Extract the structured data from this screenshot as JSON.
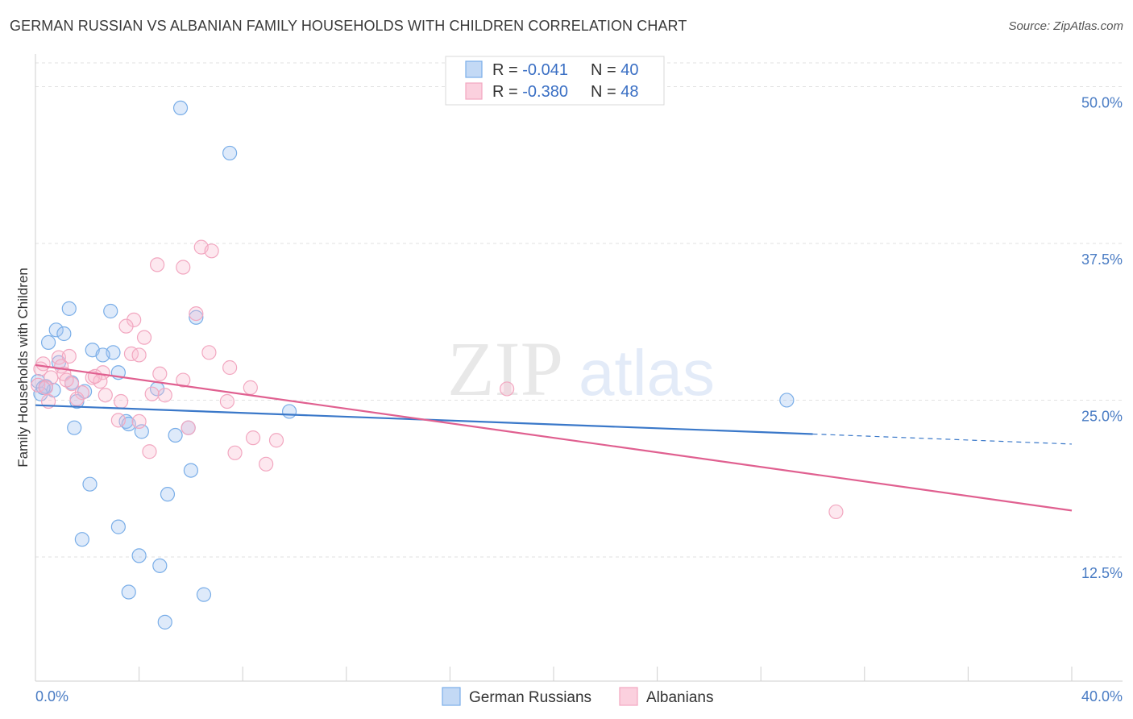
{
  "header": {
    "title": "GERMAN RUSSIAN VS ALBANIAN FAMILY HOUSEHOLDS WITH CHILDREN CORRELATION CHART",
    "source": "Source: ZipAtlas.com"
  },
  "watermark": {
    "zip": "ZIP",
    "atlas": "atlas"
  },
  "chart_data": {
    "type": "scatter",
    "title": "GERMAN RUSSIAN VS ALBANIAN FAMILY HOUSEHOLDS WITH CHILDREN CORRELATION CHART",
    "xlabel": "",
    "ylabel": "Family Households with Children",
    "xlim": [
      0,
      40
    ],
    "ylim": [
      2.6,
      52.6
    ],
    "x_tick_labels": {
      "min": "0.0%",
      "max": "40.0%"
    },
    "y_ticks": [
      {
        "value": 12.5,
        "label": "12.5%"
      },
      {
        "value": 25.0,
        "label": "25.0%"
      },
      {
        "value": 37.5,
        "label": "37.5%"
      },
      {
        "value": 50.0,
        "label": "50.0%"
      }
    ],
    "grid": true,
    "legend_position": "top-center",
    "legend": [
      {
        "r_label": "R = ",
        "r_value": "-0.041",
        "n_label": "N = ",
        "n_value": "40"
      },
      {
        "r_label": "R = ",
        "r_value": "-0.380",
        "n_label": "N = ",
        "n_value": "48"
      }
    ],
    "series": [
      {
        "name": "German Russians",
        "color": "#7aaee8",
        "line_color": "#3a78c9",
        "trend": {
          "x0": 0,
          "y0": 24.6,
          "x1": 30.0,
          "y1": 22.3,
          "dash_to_x": 40,
          "dash_to_y": 21.5
        },
        "points": [
          {
            "x": 5.6,
            "y": 48.3
          },
          {
            "x": 7.5,
            "y": 44.7
          },
          {
            "x": 1.3,
            "y": 32.3
          },
          {
            "x": 2.9,
            "y": 32.1
          },
          {
            "x": 0.8,
            "y": 30.6
          },
          {
            "x": 1.1,
            "y": 30.3
          },
          {
            "x": 6.2,
            "y": 31.6
          },
          {
            "x": 0.5,
            "y": 29.6
          },
          {
            "x": 2.2,
            "y": 29.0
          },
          {
            "x": 3.0,
            "y": 28.8
          },
          {
            "x": 2.6,
            "y": 28.6
          },
          {
            "x": 0.9,
            "y": 28.0
          },
          {
            "x": 3.2,
            "y": 27.2
          },
          {
            "x": 0.1,
            "y": 26.5
          },
          {
            "x": 0.4,
            "y": 26.1
          },
          {
            "x": 1.4,
            "y": 26.4
          },
          {
            "x": 0.7,
            "y": 25.8
          },
          {
            "x": 1.9,
            "y": 25.7
          },
          {
            "x": 0.2,
            "y": 25.5
          },
          {
            "x": 4.7,
            "y": 25.9
          },
          {
            "x": 1.6,
            "y": 24.9
          },
          {
            "x": 9.8,
            "y": 24.1
          },
          {
            "x": 29.0,
            "y": 25.0
          },
          {
            "x": 1.5,
            "y": 22.8
          },
          {
            "x": 3.5,
            "y": 23.3
          },
          {
            "x": 3.6,
            "y": 23.1
          },
          {
            "x": 4.1,
            "y": 22.5
          },
          {
            "x": 5.4,
            "y": 22.2
          },
          {
            "x": 5.9,
            "y": 22.8
          },
          {
            "x": 6.0,
            "y": 19.4
          },
          {
            "x": 2.1,
            "y": 18.3
          },
          {
            "x": 5.1,
            "y": 17.5
          },
          {
            "x": 3.2,
            "y": 14.9
          },
          {
            "x": 1.8,
            "y": 13.9
          },
          {
            "x": 4.0,
            "y": 12.6
          },
          {
            "x": 4.8,
            "y": 11.8
          },
          {
            "x": 3.6,
            "y": 9.7
          },
          {
            "x": 6.5,
            "y": 9.5
          },
          {
            "x": 5.0,
            "y": 7.3
          },
          {
            "x": 0.3,
            "y": 26.0
          }
        ]
      },
      {
        "name": "Albanians",
        "color": "#f2a7c0",
        "line_color": "#e06090",
        "trend": {
          "x0": 0,
          "y0": 27.8,
          "x1": 40,
          "y1": 16.2
        },
        "points": [
          {
            "x": 6.4,
            "y": 37.2
          },
          {
            "x": 4.7,
            "y": 35.8
          },
          {
            "x": 5.7,
            "y": 35.6
          },
          {
            "x": 6.2,
            "y": 31.9
          },
          {
            "x": 3.8,
            "y": 31.4
          },
          {
            "x": 3.5,
            "y": 30.9
          },
          {
            "x": 4.2,
            "y": 30.0
          },
          {
            "x": 6.7,
            "y": 28.8
          },
          {
            "x": 3.7,
            "y": 28.7
          },
          {
            "x": 4.0,
            "y": 28.6
          },
          {
            "x": 0.9,
            "y": 28.4
          },
          {
            "x": 1.3,
            "y": 28.5
          },
          {
            "x": 0.3,
            "y": 27.9
          },
          {
            "x": 1.0,
            "y": 27.7
          },
          {
            "x": 7.5,
            "y": 27.6
          },
          {
            "x": 1.1,
            "y": 27.1
          },
          {
            "x": 2.6,
            "y": 27.2
          },
          {
            "x": 4.8,
            "y": 27.1
          },
          {
            "x": 0.6,
            "y": 26.8
          },
          {
            "x": 2.2,
            "y": 26.8
          },
          {
            "x": 2.5,
            "y": 26.5
          },
          {
            "x": 5.7,
            "y": 26.6
          },
          {
            "x": 1.4,
            "y": 26.3
          },
          {
            "x": 0.1,
            "y": 26.2
          },
          {
            "x": 0.4,
            "y": 26.0
          },
          {
            "x": 8.3,
            "y": 26.0
          },
          {
            "x": 18.2,
            "y": 25.9
          },
          {
            "x": 1.8,
            "y": 25.6
          },
          {
            "x": 2.7,
            "y": 25.4
          },
          {
            "x": 4.5,
            "y": 25.5
          },
          {
            "x": 5.0,
            "y": 25.4
          },
          {
            "x": 0.5,
            "y": 24.9
          },
          {
            "x": 3.3,
            "y": 24.9
          },
          {
            "x": 7.4,
            "y": 24.9
          },
          {
            "x": 1.6,
            "y": 25.1
          },
          {
            "x": 3.2,
            "y": 23.4
          },
          {
            "x": 4.0,
            "y": 23.3
          },
          {
            "x": 5.9,
            "y": 22.8
          },
          {
            "x": 8.4,
            "y": 22.0
          },
          {
            "x": 9.3,
            "y": 21.8
          },
          {
            "x": 4.4,
            "y": 20.9
          },
          {
            "x": 7.7,
            "y": 20.8
          },
          {
            "x": 8.9,
            "y": 19.9
          },
          {
            "x": 30.9,
            "y": 16.1
          },
          {
            "x": 0.2,
            "y": 27.5
          },
          {
            "x": 2.3,
            "y": 26.9
          },
          {
            "x": 6.8,
            "y": 36.9
          },
          {
            "x": 1.2,
            "y": 26.6
          }
        ]
      }
    ]
  }
}
